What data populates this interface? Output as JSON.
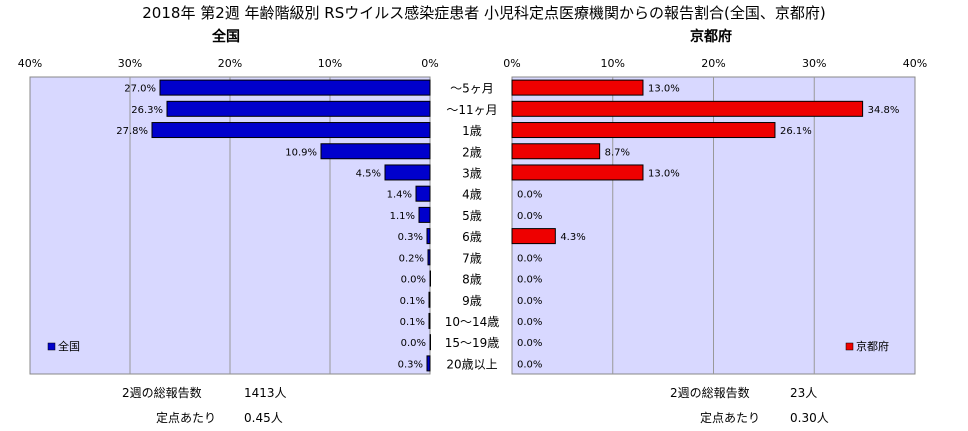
{
  "title": "2018年 第2週 年齢階級別 RSウイルス感染症患者 小児科定点医療機関からの報告割合(全国、京都府)",
  "chart_data": [
    {
      "type": "bar",
      "title": "全国",
      "categories": [
        "～5ヶ月",
        "～11ヶ月",
        "1歳",
        "2歳",
        "3歳",
        "4歳",
        "5歳",
        "6歳",
        "7歳",
        "8歳",
        "9歳",
        "10～14歳",
        "15～19歳",
        "20歳以上"
      ],
      "series": [
        {
          "name": "全国",
          "values": [
            27.0,
            26.3,
            27.8,
            10.9,
            4.5,
            1.4,
            1.1,
            0.3,
            0.2,
            0.0,
            0.1,
            0.1,
            0.0,
            0.3
          ]
        }
      ],
      "value_labels": [
        "27.0%",
        "26.3%",
        "27.8%",
        "10.9%",
        "4.5%",
        "1.4%",
        "1.1%",
        "0.3%",
        "0.2%",
        "0.0%",
        "0.1%",
        "0.1%",
        "0.0%",
        "0.3%"
      ],
      "xlim": [
        40,
        0
      ],
      "x_ticks": [
        "40%",
        "30%",
        "20%",
        "10%",
        "0%"
      ],
      "orientation": "horizontal-reversed",
      "legend": "bottom-left",
      "color": "#0000cc",
      "grid": true
    },
    {
      "type": "bar",
      "title": "京都府",
      "categories": [
        "～5ヶ月",
        "～11ヶ月",
        "1歳",
        "2歳",
        "3歳",
        "4歳",
        "5歳",
        "6歳",
        "7歳",
        "8歳",
        "9歳",
        "10～14歳",
        "15～19歳",
        "20歳以上"
      ],
      "series": [
        {
          "name": "京都府",
          "values": [
            13.0,
            34.8,
            26.1,
            8.7,
            13.0,
            0.0,
            0.0,
            4.3,
            0.0,
            0.0,
            0.0,
            0.0,
            0.0,
            0.0
          ]
        }
      ],
      "value_labels": [
        "13.0%",
        "34.8%",
        "26.1%",
        "8.7%",
        "13.0%",
        "0.0%",
        "0.0%",
        "4.3%",
        "0.0%",
        "0.0%",
        "0.0%",
        "0.0%",
        "0.0%",
        "0.0%"
      ],
      "xlim": [
        0,
        40
      ],
      "x_ticks": [
        "0%",
        "10%",
        "20%",
        "30%",
        "40%"
      ],
      "orientation": "horizontal",
      "legend": "bottom-right",
      "color": "#ee0000",
      "grid": true
    }
  ],
  "footer": {
    "left": {
      "reports_label": "2週の総報告数",
      "reports_value": "1413人",
      "per_label": "定点あたり",
      "per_value": "0.45人"
    },
    "right": {
      "reports_label": "2週の総報告数",
      "reports_value": "23人",
      "per_label": "定点あたり",
      "per_value": "0.30人"
    }
  },
  "colors": {
    "plot_bg": "#d8d8ff",
    "grid": "#999999",
    "national_bar": "#0000cc",
    "kyoto_bar": "#ee0000"
  }
}
